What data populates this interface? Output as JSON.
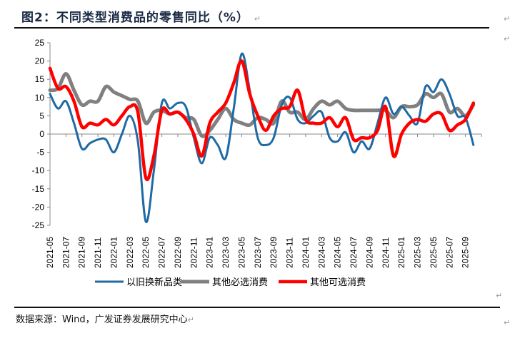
{
  "header": {
    "title": "图2：不同类型消费品的零售同比（%）"
  },
  "footer": {
    "source": "数据来源：Wind，广发证券发展研究中心"
  },
  "colors": {
    "series1": "#1f6aa5",
    "series2": "#808080",
    "series3": "#ff0000",
    "axis": "#888888"
  },
  "chart_data": {
    "type": "line",
    "title": "不同类型消费品的零售同比（%）",
    "xlabel": "",
    "ylabel": "",
    "ylim": [
      -25,
      25
    ],
    "yticks": [
      25,
      20,
      15,
      10,
      5,
      0,
      -5,
      -10,
      -15,
      -20,
      -25
    ],
    "legend_position": "bottom",
    "x": [
      "2021-05",
      "2021-06",
      "2021-07",
      "2021-08",
      "2021-09",
      "2021-10",
      "2021-11",
      "2021-12",
      "2022-01",
      "2022-02",
      "2022-03",
      "2022-04",
      "2022-05",
      "2022-06",
      "2022-07",
      "2022-08",
      "2022-09",
      "2022-10",
      "2022-11",
      "2022-12",
      "2023-01",
      "2023-02",
      "2023-03",
      "2023-04",
      "2023-05",
      "2023-06",
      "2023-07",
      "2023-08",
      "2023-09",
      "2023-10",
      "2023-11",
      "2023-12",
      "2024-01",
      "2024-02",
      "2024-03",
      "2024-04",
      "2024-05",
      "2024-06",
      "2024-07",
      "2024-08",
      "2024-09",
      "2024-10",
      "2024-11",
      "2024-12",
      "2025-01",
      "2025-02",
      "2025-03",
      "2025-04",
      "2025-05",
      "2025-06",
      "2025-07",
      "2025-08",
      "2025-09",
      "2025-10"
    ],
    "xtick_labels": [
      "2021-05",
      "2021-07",
      "2021-09",
      "2021-11",
      "2022-01",
      "2022-03",
      "2022-05",
      "2022-07",
      "2022-09",
      "2022-11",
      "2023-01",
      "2023-03",
      "2023-05",
      "2023-07",
      "2023-09",
      "2023-11",
      "2024-01",
      "2024-03",
      "2024-05",
      "2024-07",
      "2024-09",
      "2024-11",
      "2025-01",
      "2025-03",
      "2025-05",
      "2025-07",
      "2025-09"
    ],
    "series": [
      {
        "name": "以旧换新品类",
        "color": "#1f6aa5",
        "values": [
          11,
          7,
          9,
          3,
          -4,
          -2.5,
          -1.5,
          -1.5,
          -5,
          0,
          5,
          -2,
          -24,
          -10,
          8.5,
          7,
          8.5,
          7.5,
          -1,
          -8,
          -1,
          -3,
          -6.5,
          7,
          22,
          12,
          -1,
          -3,
          -1,
          8,
          10,
          4,
          3,
          5,
          6,
          -1,
          -2,
          0.5,
          -5,
          -2,
          -4,
          3,
          10,
          5.5,
          7.5,
          5,
          3,
          13,
          11.5,
          15,
          11,
          5,
          4.5,
          -3
        ]
      },
      {
        "name": "其他必选消费",
        "color": "#808080",
        "values": [
          12,
          12.5,
          16.5,
          12,
          8,
          9,
          9,
          13,
          11.5,
          10.5,
          9.5,
          9,
          3,
          6,
          6.5,
          5.5,
          6,
          4.5,
          4,
          -0.5,
          1,
          4,
          7,
          4,
          3,
          2.5,
          4.5,
          4,
          3,
          9,
          6,
          6,
          4,
          7,
          9,
          8,
          9,
          7,
          6.5,
          6.5,
          6.5,
          6.5,
          6.5,
          4.5,
          7.5,
          7.5,
          8,
          11,
          10,
          11,
          6,
          7,
          5,
          8
        ]
      },
      {
        "name": "其他可选消费",
        "color": "#ff0000",
        "values": [
          18,
          12.5,
          13,
          9,
          2,
          3,
          2.5,
          4,
          2.5,
          5,
          7.5,
          6,
          -12,
          -6,
          6.5,
          5.5,
          6,
          4,
          0,
          -6,
          3,
          6,
          8.5,
          14,
          20,
          11,
          5,
          1,
          5,
          7,
          7.5,
          12,
          4,
          3,
          3,
          4.5,
          2,
          4.5,
          -1.5,
          -1,
          -1,
          1,
          7.5,
          -6,
          0,
          3,
          4,
          3.5,
          5.5,
          5.5,
          1,
          2.5,
          4,
          8.5
        ]
      }
    ]
  }
}
